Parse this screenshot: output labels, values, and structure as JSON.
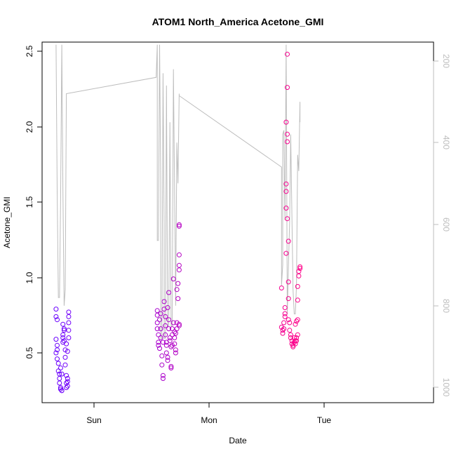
{
  "chart_data": {
    "type": "scatter",
    "title": "ATOM1 North_America Acetone_GMI",
    "xlabel": "Date",
    "ylabel": "Acetone_GMI",
    "x_ticks": [
      "Sun",
      "Mon",
      "Tue"
    ],
    "ylim": [
      0.17,
      2.57
    ],
    "y_ticks": [
      "0.5",
      "1.0",
      "1.5",
      "2.0",
      "2.5"
    ],
    "secondary_axis": {
      "side": "right",
      "reversed": true,
      "ylim": [
        1040,
        160
      ],
      "ticks": [
        "200",
        "400",
        "600",
        "800",
        "1000"
      ],
      "color": "#bdbdbd"
    },
    "grid": false,
    "legend": "none",
    "series": [
      {
        "kind": "points",
        "color_start": "#6a00ff",
        "color_end": "#ff0088",
        "points": [
          [
            -0.33,
            0.79
          ],
          [
            -0.33,
            0.74
          ],
          [
            -0.32,
            0.72
          ],
          [
            -0.33,
            0.59
          ],
          [
            -0.32,
            0.55
          ],
          [
            -0.32,
            0.52
          ],
          [
            -0.33,
            0.5
          ],
          [
            -0.32,
            0.46
          ],
          [
            -0.31,
            0.43
          ],
          [
            -0.31,
            0.38
          ],
          [
            -0.3,
            0.36
          ],
          [
            -0.3,
            0.33
          ],
          [
            -0.3,
            0.3
          ],
          [
            -0.29,
            0.27
          ],
          [
            -0.29,
            0.26
          ],
          [
            -0.28,
            0.25
          ],
          [
            -0.28,
            0.25
          ],
          [
            -0.28,
            0.36
          ],
          [
            -0.27,
            0.57
          ],
          [
            -0.27,
            0.6
          ],
          [
            -0.27,
            0.62
          ],
          [
            -0.26,
            0.65
          ],
          [
            -0.26,
            0.66
          ],
          [
            -0.26,
            0.58
          ],
          [
            -0.25,
            0.52
          ],
          [
            -0.25,
            0.47
          ],
          [
            -0.25,
            0.42
          ],
          [
            -0.24,
            0.35
          ],
          [
            -0.24,
            0.3
          ],
          [
            -0.24,
            0.27
          ],
          [
            -0.23,
            0.28
          ],
          [
            -0.23,
            0.31
          ],
          [
            -0.23,
            0.33
          ],
          [
            -0.22,
            0.6
          ],
          [
            -0.22,
            0.65
          ],
          [
            -0.22,
            0.7
          ],
          [
            -0.22,
            0.74
          ],
          [
            -0.22,
            0.77
          ],
          [
            -0.23,
            0.51
          ],
          [
            -0.24,
            0.56
          ],
          [
            -0.29,
            0.4
          ],
          [
            -0.27,
            0.69
          ],
          [
            0.55,
            0.78
          ],
          [
            0.55,
            0.75
          ],
          [
            0.55,
            0.7
          ],
          [
            0.55,
            0.66
          ],
          [
            0.56,
            0.62
          ],
          [
            0.56,
            0.57
          ],
          [
            0.56,
            0.55
          ],
          [
            0.57,
            0.53
          ],
          [
            0.57,
            0.72
          ],
          [
            0.58,
            0.76
          ],
          [
            0.58,
            0.66
          ],
          [
            0.58,
            0.6
          ],
          [
            0.59,
            0.48
          ],
          [
            0.59,
            0.42
          ],
          [
            0.6,
            0.35
          ],
          [
            0.6,
            0.33
          ],
          [
            0.6,
            0.57
          ],
          [
            0.61,
            0.84
          ],
          [
            0.61,
            0.79
          ],
          [
            0.62,
            0.74
          ],
          [
            0.62,
            0.68
          ],
          [
            0.62,
            0.62
          ],
          [
            0.63,
            0.57
          ],
          [
            0.63,
            0.55
          ],
          [
            0.63,
            0.5
          ],
          [
            0.64,
            0.47
          ],
          [
            0.64,
            0.45
          ],
          [
            0.64,
            0.8
          ],
          [
            0.65,
            0.9
          ],
          [
            0.65,
            0.72
          ],
          [
            0.65,
            0.66
          ],
          [
            0.66,
            0.6
          ],
          [
            0.66,
            0.58
          ],
          [
            0.67,
            0.54
          ],
          [
            0.67,
            0.41
          ],
          [
            0.67,
            0.4
          ],
          [
            0.68,
            0.55
          ],
          [
            0.68,
            0.62
          ],
          [
            0.68,
            0.66
          ],
          [
            0.69,
            0.99
          ],
          [
            0.69,
            0.7
          ],
          [
            0.7,
            0.64
          ],
          [
            0.7,
            0.6
          ],
          [
            0.7,
            0.56
          ],
          [
            0.71,
            0.52
          ],
          [
            0.71,
            0.5
          ],
          [
            0.71,
            0.63
          ],
          [
            0.72,
            0.66
          ],
          [
            0.72,
            0.7
          ],
          [
            0.72,
            0.92
          ],
          [
            0.73,
            0.96
          ],
          [
            0.73,
            0.86
          ],
          [
            0.74,
            1.35
          ],
          [
            0.74,
            1.34
          ],
          [
            0.74,
            1.15
          ],
          [
            0.74,
            1.08
          ],
          [
            0.74,
            1.05
          ],
          [
            0.74,
            0.68
          ],
          [
            0.74,
            0.69
          ],
          [
            1.63,
            0.93
          ],
          [
            1.63,
            0.67
          ],
          [
            1.64,
            0.65
          ],
          [
            1.64,
            0.63
          ],
          [
            1.65,
            0.66
          ],
          [
            1.65,
            0.7
          ],
          [
            1.66,
            0.8
          ],
          [
            1.66,
            0.74
          ],
          [
            1.67,
            1.16
          ],
          [
            1.67,
            1.46
          ],
          [
            1.67,
            1.62
          ],
          [
            1.67,
            2.03
          ],
          [
            1.68,
            2.48
          ],
          [
            1.68,
            1.95
          ],
          [
            1.68,
            1.39
          ],
          [
            1.69,
            1.24
          ],
          [
            1.69,
            0.97
          ],
          [
            1.69,
            0.72
          ],
          [
            1.7,
            0.7
          ],
          [
            1.7,
            0.65
          ],
          [
            1.71,
            0.62
          ],
          [
            1.71,
            0.6
          ],
          [
            1.72,
            0.58
          ],
          [
            1.72,
            0.56
          ],
          [
            1.73,
            0.54
          ],
          [
            1.73,
            0.55
          ],
          [
            1.74,
            0.57
          ],
          [
            1.74,
            0.6
          ],
          [
            1.75,
            0.58
          ],
          [
            1.75,
            0.56
          ],
          [
            1.76,
            0.58
          ],
          [
            1.76,
            0.6
          ],
          [
            1.77,
            0.62
          ],
          [
            1.77,
            0.72
          ],
          [
            1.77,
            0.85
          ],
          [
            1.77,
            0.94
          ],
          [
            1.78,
            1.01
          ],
          [
            1.78,
            1.04
          ],
          [
            1.79,
            1.06
          ],
          [
            1.79,
            1.07
          ],
          [
            1.68,
            2.26
          ],
          [
            1.68,
            1.9
          ],
          [
            1.67,
            1.57
          ],
          [
            1.66,
            0.76
          ],
          [
            1.69,
            0.86
          ],
          [
            1.76,
            0.71
          ],
          [
            1.75,
            0.69
          ]
        ]
      },
      {
        "kind": "line",
        "name": "",
        "color": "#bdbdbd",
        "axis": "secondary",
        "points": [
          [
            -0.33,
            160
          ],
          [
            -0.32,
            520
          ],
          [
            -0.31,
            780
          ],
          [
            -0.3,
            780
          ],
          [
            -0.29,
            540
          ],
          [
            -0.28,
            160
          ],
          [
            -0.27,
            520
          ],
          [
            -0.26,
            800
          ],
          [
            -0.25,
            760
          ],
          [
            -0.24,
            280
          ],
          [
            0.54,
            240
          ],
          [
            0.55,
            160
          ],
          [
            0.55,
            640
          ],
          [
            0.56,
            640
          ],
          [
            0.57,
            160
          ],
          [
            0.58,
            500
          ],
          [
            0.58,
            880
          ],
          [
            0.59,
            880
          ],
          [
            0.6,
            230
          ],
          [
            0.61,
            600
          ],
          [
            0.61,
            880
          ],
          [
            0.62,
            880
          ],
          [
            0.63,
            260
          ],
          [
            0.64,
            850
          ],
          [
            0.65,
            850
          ],
          [
            0.66,
            350
          ],
          [
            0.67,
            850
          ],
          [
            0.68,
            850
          ],
          [
            0.69,
            220
          ],
          [
            0.71,
            800
          ],
          [
            0.72,
            400
          ],
          [
            0.73,
            500
          ],
          [
            0.74,
            280
          ],
          [
            0.74,
            285
          ],
          [
            1.63,
            460
          ],
          [
            1.63,
            750
          ],
          [
            1.64,
            700
          ],
          [
            1.64,
            380
          ],
          [
            1.65,
            370
          ],
          [
            1.66,
            590
          ],
          [
            1.67,
            160
          ],
          [
            1.68,
            820
          ],
          [
            1.69,
            700
          ],
          [
            1.7,
            600
          ],
          [
            1.71,
            380
          ],
          [
            1.72,
            580
          ],
          [
            1.73,
            760
          ],
          [
            1.74,
            820
          ],
          [
            1.75,
            820
          ],
          [
            1.76,
            750
          ],
          [
            1.77,
            430
          ],
          [
            1.78,
            470
          ],
          [
            1.79,
            300
          ],
          [
            1.79,
            350
          ]
        ]
      }
    ]
  }
}
